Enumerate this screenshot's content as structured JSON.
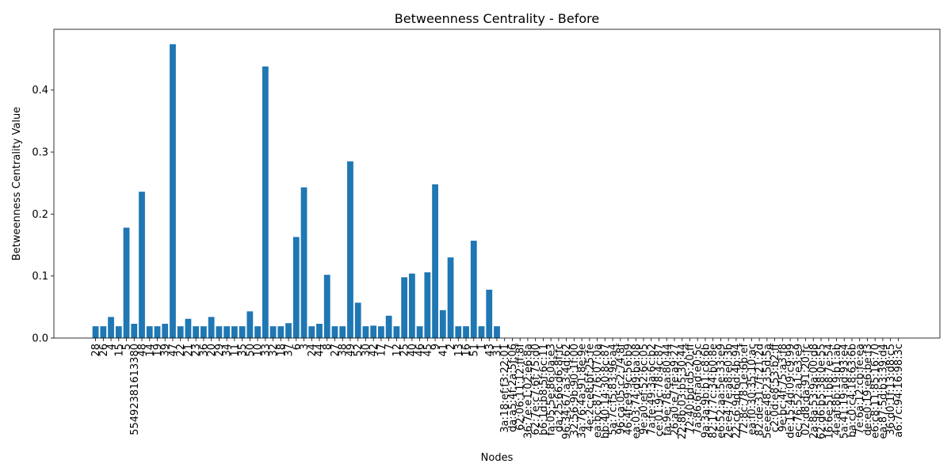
{
  "chart_data": {
    "type": "bar",
    "title": "Betweenness Centrality - Before",
    "x_label": "Nodes",
    "y_label": "Betweenness Centrality Value",
    "color": "#1f77b4",
    "categories": [
      "28",
      "26",
      "4",
      "15",
      "5",
      "55492381613380",
      "48",
      "14",
      "19",
      "39",
      "47",
      "22",
      "21",
      "23",
      "36",
      "20",
      "29",
      "34",
      "11",
      "35",
      "50",
      "10",
      "33",
      "32",
      "18",
      "37",
      "6",
      "3",
      "24",
      "44",
      "8",
      "27",
      "38",
      "49",
      "52",
      "30",
      "42",
      "17",
      "7",
      "12",
      "25",
      "40",
      "46",
      "45",
      "9",
      "41",
      "2",
      "13",
      "16",
      "51",
      "1",
      "43",
      "31",
      "3a:18:ef:f3:22:01",
      "da:a5:4f:2a:5f:06",
      "62:06:11:12:ff:8f",
      "36:7e:e1:02:e6:8a",
      "62:7e:c7:6f:75:d0",
      "b6:1d:b8:5f:6c:11",
      "fa:05:5e:86:0a:e3",
      "da:25:66:d6:8f:fc",
      "96:34:67:a3:4d:62",
      "32:56:9b:90:1f:00",
      "3a:76:4a:91:8e:9e",
      "4e:2c:e8:bf:25:fe",
      "ea:bc:87:76:07:0a",
      "bb:40:14:30:8c:87",
      "5a:7c:f5:83:96:a4",
      "96:ca:05:c2:74:8f",
      "46:4f:e9:9c:56:b9",
      "ea:03:74:d9:ba:08",
      "9e:a0:ef:52:6c:05",
      "7a:fe:49:3a:6c:b2",
      "ce:01:9c:78:4c:87",
      "fa:9e:78:ea:80:44",
      "26:a0:e7:fe:a9:27",
      "22:8b:03:b5:30:44",
      "72:40:bd:d5:20:ff",
      "7a:86:6f:ad:e0:5c",
      "9a:3a:9b:b1:c8:6b",
      "82:17:7c:34:b0:8e",
      "e6:52:aa:5e:33:e9",
      "2e:e4:7e:a8:e0:3b",
      "22:c6:9d:6d:4b:94",
      "72:8c:78:1e:6b:ef",
      "ea:f0:30:35:10:ac",
      "82:de:31:7f:21:2d",
      "5e:ee:48:23:5d:5a",
      "c2:0d:e8:53:b2:ff",
      "9e:bc:4f:75:a3:f8",
      "de:15:4d:09:c9:99",
      "ec:76:52:a1:e3:e9",
      "02:d8:da:91:20:fc",
      "2a:8a:53:9a:00:d8",
      "62:d6:b5:38:0e:55",
      "16:6e:51:b8:7e:54",
      "4e:af:8b:19:b1:ab",
      "5a:41:19:ad:93:e4",
      "ba:c0:c4:18:63:6b",
      "7e:6a:12:cb:fe:ea",
      "de:e0:19:e6:be:f3",
      "e6:c8:11:85:16:70",
      "ea:87:5d:b3:39:d4",
      "36:d0:1f:13:d8:c5",
      "a6:7c:94:16:98:3c"
    ],
    "values": [
      0.019,
      0.019,
      0.034,
      0.019,
      0.178,
      0.023,
      0.236,
      0.019,
      0.019,
      0.023,
      0.474,
      0.019,
      0.031,
      0.019,
      0.019,
      0.034,
      0.019,
      0.019,
      0.019,
      0.019,
      0.043,
      0.019,
      0.438,
      0.019,
      0.019,
      0.024,
      0.163,
      0.243,
      0.019,
      0.023,
      0.102,
      0.019,
      0.019,
      0.285,
      0.057,
      0.019,
      0.02,
      0.019,
      0.036,
      0.019,
      0.098,
      0.104,
      0.019,
      0.106,
      0.248,
      0.045,
      0.13,
      0.019,
      0.019,
      0.157,
      0.019,
      0.078,
      0.019,
      0,
      0,
      0,
      0,
      0,
      0,
      0,
      0,
      0,
      0,
      0,
      0,
      0,
      0,
      0,
      0,
      0,
      0,
      0,
      0,
      0,
      0,
      0,
      0,
      0,
      0,
      0,
      0,
      0,
      0,
      0,
      0,
      0,
      0,
      0,
      0,
      0,
      0,
      0,
      0,
      0,
      0,
      0,
      0,
      0,
      0,
      0,
      0,
      0,
      0,
      0,
      0
    ],
    "ylim": [
      0,
      0.498
    ],
    "yticks": [
      {
        "value": 0,
        "label": "0.0"
      },
      0.1,
      0.2,
      0.3,
      0.4
    ]
  }
}
